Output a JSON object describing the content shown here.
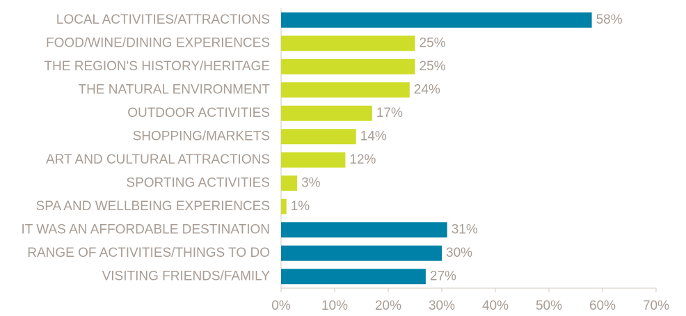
{
  "chart_data": {
    "type": "bar",
    "orientation": "horizontal",
    "categories": [
      "LOCAL ACTIVITIES/ATTRACTIONS",
      "FOOD/WINE/DINING EXPERIENCES",
      "THE REGION'S HISTORY/HERITAGE",
      "THE NATURAL ENVIRONMENT",
      "OUTDOOR ACTIVITIES",
      "SHOPPING/MARKETS",
      "ART AND CULTURAL ATTRACTIONS",
      "SPORTING ACTIVITIES",
      "SPA AND WELLBEING EXPERIENCES",
      "IT WAS AN AFFORDABLE DESTINATION",
      "RANGE OF ACTIVITIES/THINGS TO DO",
      "VISITING FRIENDS/FAMILY"
    ],
    "values": [
      58,
      25,
      25,
      24,
      17,
      14,
      12,
      3,
      1,
      31,
      30,
      27
    ],
    "value_labels": [
      "58%",
      "25%",
      "25%",
      "24%",
      "17%",
      "14%",
      "12%",
      "3%",
      "1%",
      "31%",
      "30%",
      "27%"
    ],
    "colors": [
      "#0081a7",
      "#cedd2a",
      "#cedd2a",
      "#cedd2a",
      "#cedd2a",
      "#cedd2a",
      "#cedd2a",
      "#cedd2a",
      "#cedd2a",
      "#0081a7",
      "#0081a7",
      "#0081a7"
    ],
    "xlim": [
      0,
      70
    ],
    "xticks": [
      {
        "value": 0,
        "label": "0%"
      },
      {
        "value": 10,
        "label": "10%"
      },
      {
        "value": 20,
        "label": "20%"
      },
      {
        "value": 30,
        "label": "30%"
      },
      {
        "value": 40,
        "label": "40%"
      },
      {
        "value": 50,
        "label": "50%"
      },
      {
        "value": 60,
        "label": "60%"
      },
      {
        "value": 70,
        "label": "70%"
      }
    ]
  }
}
